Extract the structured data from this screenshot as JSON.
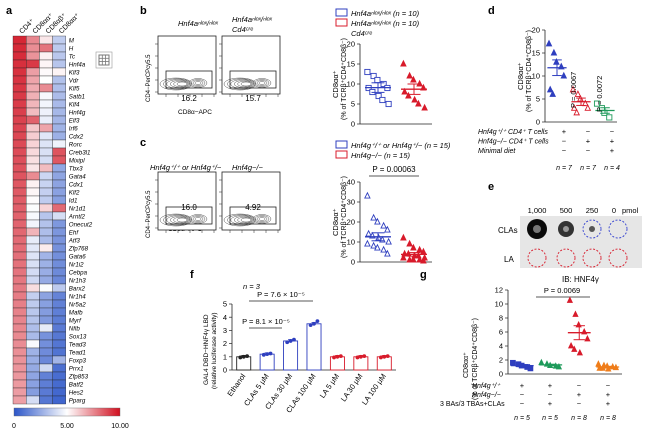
{
  "panel_letters": [
    "a",
    "b",
    "c",
    "d",
    "e",
    "f",
    "g"
  ],
  "colors": {
    "blue": "#2f3fbf",
    "red": "#d81b2b",
    "green": "#1e9a5a",
    "orange": "#ef7d1a",
    "teal": "#1a9aa0",
    "heat_low": "#2b55c8",
    "heat_mid": "#ffffff",
    "heat_high": "#d10f1f"
  },
  "a": {
    "columns": [
      "CD4⁺",
      "CD8αα⁺",
      "CD8αβ⁺",
      "CD8αα⁺"
    ],
    "columns_italic_top": "M",
    "genes_visible_top": [
      "M",
      "H",
      "Tc",
      "Hnf4a",
      "Klf3",
      "Vdr",
      "Klf5",
      "Satb1",
      "Klf4",
      "Hnf4g",
      "Elf3",
      "Irf6",
      "Cdx2",
      "Rorc",
      "Creb3l1",
      "Mixipl",
      "Tbx3",
      "Gata4",
      "Cdx1",
      "Klf2",
      "Id1",
      "Nr1d1",
      "Arntl2",
      "Onecut2",
      "Ehf",
      "Atf3",
      "Zfp768",
      "Gata6",
      "Nr1i2",
      "Cebpa",
      "Nr1h3",
      "Barx2",
      "Nr1h4",
      "Nr5a2",
      "Mafb",
      "Myrf",
      "Nfib",
      "Sox13",
      "Tead3",
      "Tead1",
      "Foxp3",
      "Prrx1",
      "Zfp853",
      "Batf2",
      "Hes2",
      "Pparg"
    ],
    "colorbar_ticks": [
      "0",
      "5.00",
      "10.00"
    ]
  },
  "b": {
    "flow_left_title": "Hnf4aⁿˡᵒˣ/ⁿˡᵒˣ",
    "flow_right_title": "Hnf4aⁿˡᵒˣ/ⁿˡᵒˣ",
    "flow_right_title2": "Cd4ᶜʳᵉ",
    "flow_left_value": "16.2",
    "flow_right_value": "15.7",
    "ylabel": "CD4−PerCPcy5.5",
    "xlabel": "CD8α−APC",
    "legend": [
      "Hnf4aⁿˡᵒˣ/ⁿˡᵒˣ (n = 10)",
      "Hnf4aⁿˡᵒˣ/ⁿˡᵒˣ (n = 10)"
    ],
    "legend2": "Cd4ᶜʳᵉ"
  },
  "c": {
    "flow_left_title": "Hnf4g⁺/⁺ or Hnf4g⁺/−",
    "flow_right_title": "Hnf4g−/−",
    "flow_left_value": "16.0",
    "flow_right_value": "4.92",
    "ylabel": "CD4−PerCPcy5.5",
    "xlabel": "CD8α−APC",
    "legend": [
      "Hnf4g⁺/⁺ or Hnf4g⁺/− (n = 15)",
      "Hnf4g−/− (n = 15)"
    ],
    "pvalue": "P = 0.00063"
  },
  "d": {
    "rows": [
      "Hnf4g⁺/⁺ CD4⁺ T cells",
      "Hnf4g−/− CD4⁺ T cells",
      "Minimal diet"
    ],
    "row_marks": [
      [
        "+",
        "−",
        "−"
      ],
      [
        "−",
        "+",
        "+"
      ],
      [
        "−",
        "−",
        "+"
      ]
    ],
    "ns": [
      "n = 7",
      "n = 7",
      "n = 4"
    ],
    "pvalues": [
      "P = 0.0067",
      "P = 0.0072"
    ]
  },
  "e": {
    "conc": [
      "1,000",
      "500",
      "250",
      "0"
    ],
    "unit": "pmol",
    "rows": [
      "CLAs",
      "LA"
    ],
    "footer": "IB: HNF4γ"
  },
  "f": {
    "ylabel": "GAL4 DBD−HNF4γ LBD",
    "ylabel2": "(relative luciferase activity)",
    "n": "n = 3",
    "pvalues": [
      "P = 7.6 × 10⁻⁵",
      "P = 8.1 × 10⁻⁵"
    ]
  },
  "g": {
    "ylabel": "CD8αα⁺",
    "ylabel2": "(% of TCRβ⁺CD4⁺CD8β⁻)",
    "rows": [
      "Hnf4g⁺/⁺",
      "Hnf4g−/−",
      "3 BAs/3 TBAs+CLAs"
    ],
    "row_marks": [
      [
        "+",
        "+",
        "−",
        "−"
      ],
      [
        "−",
        "−",
        "+",
        "+"
      ],
      [
        "−",
        "+",
        "−",
        "+"
      ]
    ],
    "ns": [
      "n = 5",
      "n = 5",
      "n = 8",
      "n = 8"
    ],
    "pvalue": "P = 0.0069"
  },
  "chart_data": [
    {
      "panel": "b",
      "type": "scatter",
      "ylabel": "CD8αα⁺ (% of TCRβ⁺CD4⁺CD8β⁻)",
      "ylim": [
        0,
        20
      ],
      "yticks": [
        0,
        5,
        10,
        15,
        20
      ],
      "series": [
        {
          "color": "#2f3fbf",
          "marker": "square-open",
          "values": [
            13,
            12,
            11,
            10,
            9,
            9,
            8,
            7,
            6,
            5
          ],
          "mean": 9.1,
          "sem": 1.2
        },
        {
          "color": "#d81b2b",
          "marker": "triangle",
          "values": [
            15,
            12,
            11,
            10,
            9,
            8,
            7,
            6,
            5,
            4
          ],
          "mean": 8.7,
          "sem": 1.3
        }
      ]
    },
    {
      "panel": "c",
      "type": "scatter",
      "ylabel": "CD8αα⁺ (% of TCRβ⁺CD4⁺CD8β⁻)",
      "ylim": [
        0,
        40
      ],
      "yticks": [
        0,
        10,
        20,
        30,
        40
      ],
      "series": [
        {
          "color": "#2f3fbf",
          "marker": "triangle-open",
          "values": [
            33,
            22,
            20,
            18,
            16,
            14,
            13,
            12,
            11,
            10,
            9,
            8,
            7,
            6,
            4
          ],
          "mean": 12.6,
          "sem": 2.0
        },
        {
          "color": "#d81b2b",
          "marker": "triangle",
          "values": [
            12,
            9,
            7,
            6,
            5,
            4,
            4,
            3,
            3,
            2,
            2,
            1,
            1,
            1,
            0.5
          ],
          "mean": 3.8,
          "sem": 0.9
        }
      ]
    },
    {
      "panel": "d",
      "type": "scatter",
      "ylabel": "CD8αα⁺ (% of TCRβ⁺CD4⁺CD8β⁻)",
      "ylim": [
        0,
        20
      ],
      "yticks": [
        0,
        5,
        10,
        15,
        20
      ],
      "series": [
        {
          "color": "#2f3fbf",
          "marker": "triangle",
          "values": [
            17,
            15,
            13,
            12,
            10,
            7,
            6
          ],
          "mean": 11.8,
          "sem": 1.7
        },
        {
          "color": "#d81b2b",
          "marker": "triangle-open",
          "values": [
            7,
            6,
            5,
            4,
            3,
            3,
            2
          ],
          "mean": 4.4,
          "sem": 0.8
        },
        {
          "color": "#1e9a5a",
          "marker": "square-open",
          "values": [
            4,
            3,
            2,
            1
          ],
          "mean": 2.5,
          "sem": 0.6
        }
      ]
    },
    {
      "panel": "f",
      "type": "bar",
      "categories": [
        "Ethanol",
        "CLAs 5 μM",
        "CLAs 30 μM",
        "CLAs 100 μM",
        "LA 5 μM",
        "LA 30 μM",
        "LA 100 μM"
      ],
      "ylim": [
        0,
        5
      ],
      "yticks": [
        0,
        1,
        2,
        3,
        4,
        5
      ],
      "values": [
        1.0,
        1.2,
        2.2,
        3.5,
        1.0,
        1.0,
        1.0
      ],
      "points": [
        [
          0.95,
          1.0,
          1.05
        ],
        [
          1.15,
          1.2,
          1.25
        ],
        [
          2.1,
          2.2,
          2.3
        ],
        [
          3.4,
          3.5,
          3.7
        ],
        [
          0.95,
          1.0,
          1.05
        ],
        [
          0.95,
          1.0,
          1.05
        ],
        [
          0.95,
          1.0,
          1.05
        ]
      ],
      "colors": [
        "#222222",
        "#2f3fbf",
        "#2f3fbf",
        "#2f3fbf",
        "#d81b2b",
        "#d81b2b",
        "#d81b2b"
      ]
    },
    {
      "panel": "g",
      "type": "scatter",
      "ylim": [
        0,
        12
      ],
      "yticks": [
        0,
        2,
        4,
        6,
        8,
        10,
        12
      ],
      "series": [
        {
          "color": "#2f3fbf",
          "marker": "square",
          "values": [
            1.6,
            1.4,
            1.2,
            1.0,
            0.8
          ],
          "mean": 1.2,
          "sem": 0.15
        },
        {
          "color": "#1e9a5a",
          "marker": "triangle",
          "values": [
            1.6,
            1.4,
            1.2,
            1.1,
            1.0
          ],
          "mean": 1.3,
          "sem": 0.1
        },
        {
          "color": "#d81b2b",
          "marker": "triangle",
          "values": [
            10.5,
            8.5,
            7,
            6,
            5,
            4,
            3.5,
            3
          ],
          "mean": 5.9,
          "sem": 1.0
        },
        {
          "color": "#ef7d1a",
          "marker": "triangle",
          "values": [
            1.4,
            1.2,
            1.1,
            1.0,
            0.9,
            0.8,
            0.8,
            0.7
          ],
          "mean": 1.0,
          "sem": 0.1
        }
      ]
    }
  ]
}
